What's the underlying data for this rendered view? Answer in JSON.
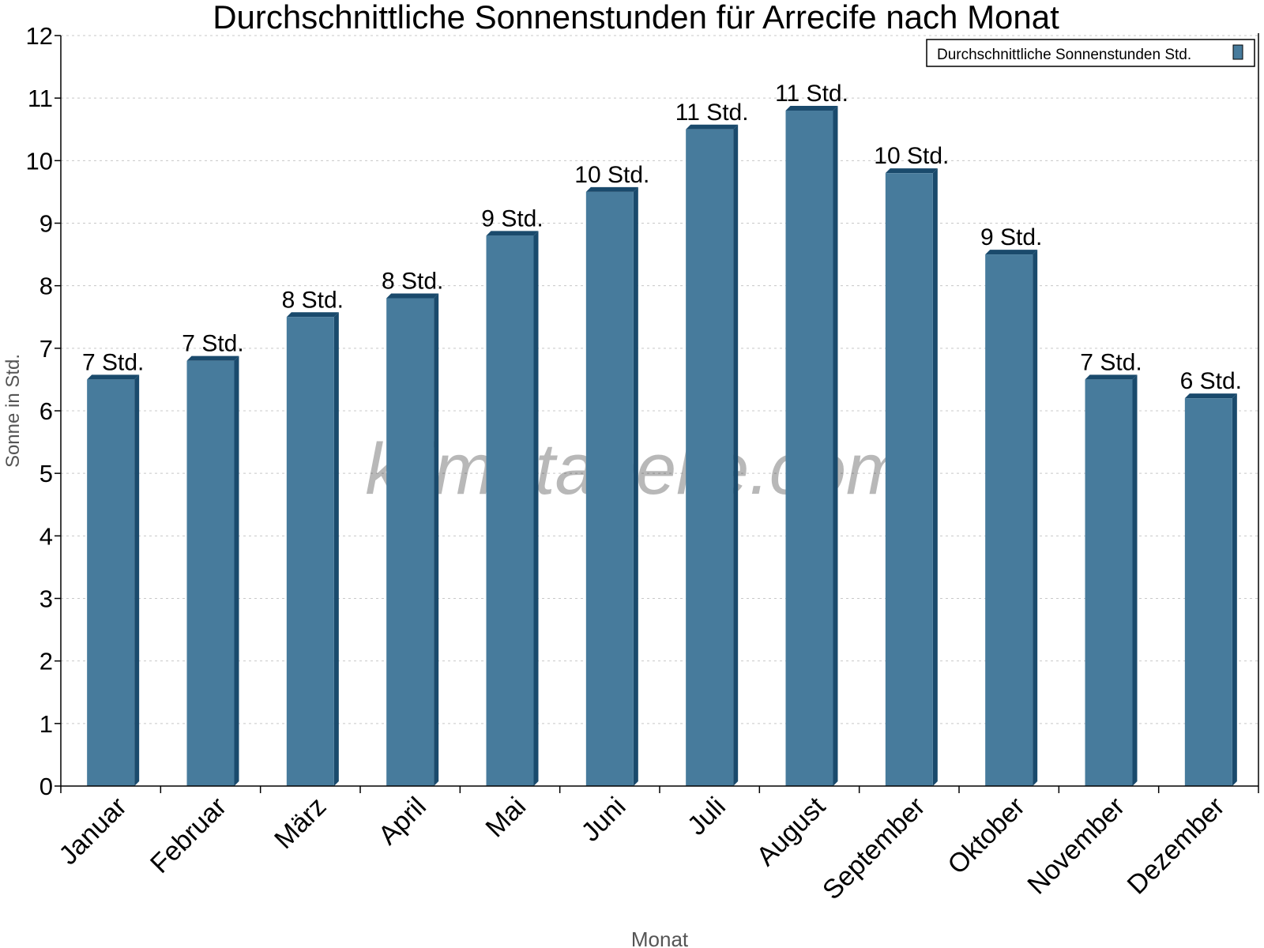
{
  "chart_data": {
    "type": "bar",
    "title": "Durchschnittliche Sonnenstunden für Arrecife nach Monat",
    "xlabel": "Monat",
    "ylabel": "Sonne in Std.",
    "ylim": [
      0,
      12
    ],
    "yticks": [
      0,
      1,
      2,
      3,
      4,
      5,
      6,
      7,
      8,
      9,
      10,
      11,
      12
    ],
    "grid": true,
    "legend_placement": "top-right",
    "categories": [
      "Januar",
      "Februar",
      "März",
      "April",
      "Mai",
      "Juni",
      "Juli",
      "August",
      "September",
      "Oktober",
      "November",
      "Dezember"
    ],
    "series": [
      {
        "name": "Durchschnittliche Sonnenstunden Std.",
        "color": "#477b9c",
        "side_color": "#1a4a6c",
        "values": [
          6.5,
          6.8,
          7.5,
          7.8,
          8.8,
          9.5,
          10.5,
          10.8,
          9.8,
          8.5,
          6.5,
          6.2
        ],
        "labels": [
          "7 Std.",
          "7 Std.",
          "8 Std.",
          "8 Std.",
          "9 Std.",
          "10 Std.",
          "11 Std.",
          "11 Std.",
          "10 Std.",
          "9 Std.",
          "7 Std.",
          "6 Std."
        ]
      }
    ],
    "watermark": "klimatabelle.com"
  }
}
